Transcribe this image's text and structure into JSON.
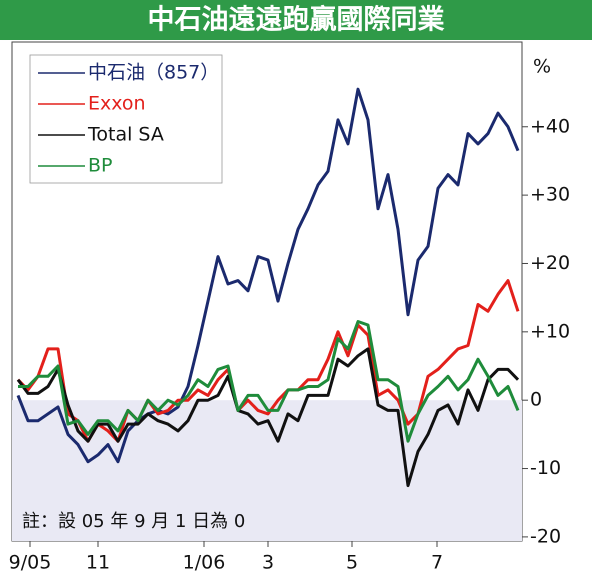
{
  "chart_data": {
    "type": "line",
    "title": "中石油遠遠跑贏國際同業",
    "ylabel": "%",
    "note": "註：設 05 年 9 月 1 日為 0",
    "x": [
      0,
      1,
      2,
      3,
      4,
      5,
      6,
      7,
      8,
      9,
      10,
      11,
      12,
      13,
      14,
      15,
      16,
      17,
      18,
      19,
      20,
      21,
      22,
      23,
      24,
      25,
      26,
      27,
      28,
      29,
      30,
      31,
      32,
      33,
      34,
      35,
      36,
      37,
      38,
      39,
      40,
      41,
      42,
      43,
      44,
      45,
      46,
      47,
      48,
      49,
      50
    ],
    "xlim": [
      -0.6,
      50.4
    ],
    "xticks": [
      {
        "value": 1.2,
        "label": "9/05"
      },
      {
        "value": 8,
        "label": "11"
      },
      {
        "value": 18.6,
        "label": "1/06"
      },
      {
        "value": 25,
        "label": "3"
      },
      {
        "value": 33.4,
        "label": "5"
      },
      {
        "value": 41.9,
        "label": "7"
      }
    ],
    "ylim": [
      -20.6,
      52.4
    ],
    "yticks": [
      {
        "value": 40,
        "label": "+40"
      },
      {
        "value": 30,
        "label": "+30"
      },
      {
        "value": 20,
        "label": "+20"
      },
      {
        "value": 10,
        "label": "+10"
      },
      0,
      -10,
      -20
    ],
    "series": [
      {
        "name": "中石油（857）",
        "color": "#1b2a6e",
        "values": [
          0.7,
          -3,
          -3,
          -2,
          -1,
          -5,
          -6.5,
          -9,
          -8,
          -6.5,
          -9,
          -4.5,
          -3,
          -2,
          -1.5,
          -2,
          -1,
          2,
          8,
          14.5,
          21,
          17,
          17.5,
          16,
          21,
          20.5,
          14.5,
          20,
          25,
          28,
          31.5,
          33.5,
          41,
          37.5,
          45.5,
          41,
          28,
          33,
          25,
          12.5,
          20.5,
          22.5,
          31,
          33,
          31.5,
          39,
          37.5,
          39,
          42,
          40,
          36.5
        ]
      },
      {
        "name": "Exxon",
        "color": "#e3201b",
        "values": [
          3,
          1.5,
          3.5,
          7.5,
          7.5,
          -2,
          -3,
          -6,
          -3.5,
          -4.5,
          -6,
          -1.5,
          -3,
          0,
          -2,
          -1.5,
          0,
          0,
          1.5,
          0.7,
          3,
          4.5,
          -1.5,
          0,
          -1.5,
          -2,
          0,
          1.5,
          1.5,
          3,
          3,
          6,
          10,
          6.5,
          11,
          9.5,
          0.7,
          1.5,
          0,
          -3.5,
          -2,
          3.5,
          4.5,
          6,
          7.5,
          8,
          14,
          13,
          15.5,
          17.5,
          13
        ]
      },
      {
        "name": "Total SA",
        "color": "#111111",
        "values": [
          3,
          1,
          1,
          2,
          4.5,
          -0.7,
          -4.5,
          -6,
          -3.5,
          -3.5,
          -6,
          -3.5,
          -3.5,
          -2,
          -3,
          -3.5,
          -4.5,
          -3,
          0,
          0,
          0.7,
          3.5,
          -1.5,
          -2,
          -3.5,
          -3,
          -6,
          -2,
          -3,
          0.7,
          0.7,
          0.7,
          6,
          5,
          6.5,
          7.5,
          -0.7,
          -1.5,
          -1.5,
          -12.5,
          -7.5,
          -5,
          -1.5,
          -0.7,
          -3.5,
          1.5,
          -1.5,
          3,
          4.5,
          4.5,
          3
        ]
      },
      {
        "name": "BP",
        "color": "#1f8c3b",
        "values": [
          2,
          2,
          3.5,
          3.5,
          5,
          -3.5,
          -3,
          -5,
          -3,
          -3,
          -4.5,
          -1.5,
          -3,
          0,
          -1.5,
          0,
          -0.7,
          0.7,
          3,
          2,
          4.5,
          5,
          -1.5,
          0.7,
          0.7,
          -1.5,
          -1.5,
          1.5,
          1.5,
          2,
          2,
          3,
          9,
          7.5,
          11.5,
          11,
          3,
          3,
          2,
          -6,
          -2,
          0.7,
          2,
          3.5,
          1.5,
          3,
          6,
          3.5,
          0.7,
          2,
          -1.5
        ]
      }
    ]
  }
}
